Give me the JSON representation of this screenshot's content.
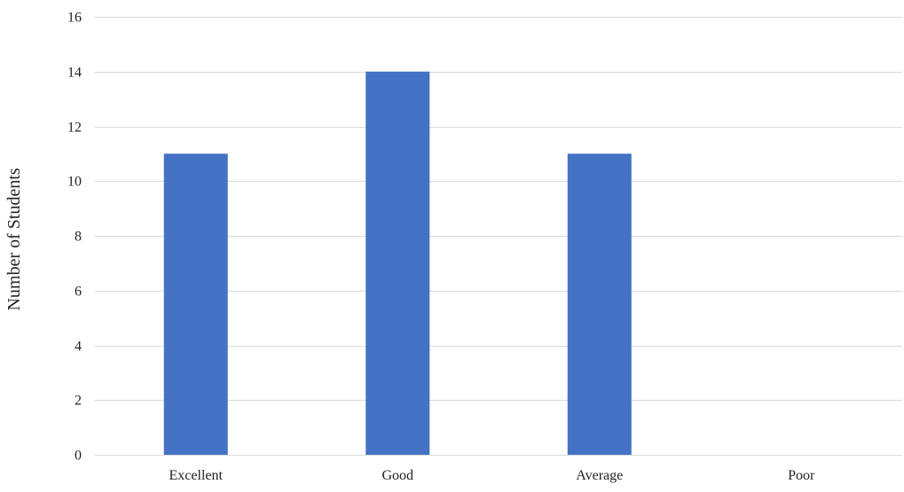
{
  "chart_data": {
    "type": "bar",
    "title": "",
    "xlabel": "",
    "ylabel": "Number of Students",
    "categories": [
      "Excellent",
      "Good",
      "Average",
      "Poor"
    ],
    "values": [
      11,
      14,
      11,
      0
    ],
    "ylim": [
      0,
      16
    ],
    "yticks": [
      0,
      2,
      4,
      6,
      8,
      10,
      12,
      14,
      16
    ],
    "grid": true,
    "legend": "none",
    "colors": {
      "bar": "#4472c4",
      "grid": "#d9d9d9",
      "text": "#222222"
    }
  }
}
